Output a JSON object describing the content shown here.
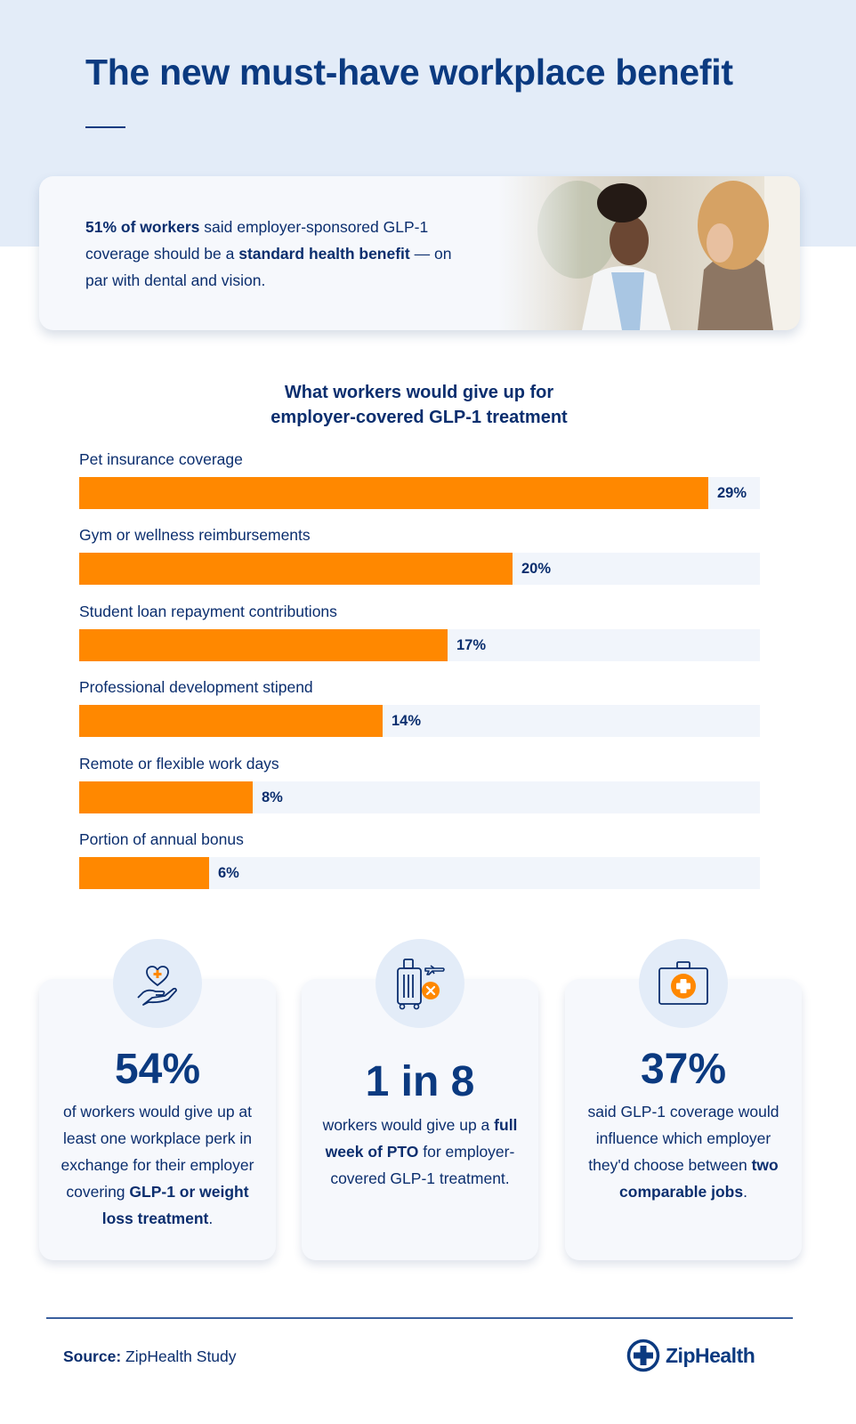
{
  "header": {
    "title": "The new must-have workplace benefit"
  },
  "hero": {
    "stat_bold": "51% of workers",
    "text_1": " said employer-sponsored GLP-1 coverage should be a ",
    "emphasis": "standard health benefit",
    "text_2": " — on par with dental and vision.",
    "photo_alt": "doctor-consulting-patient-photo"
  },
  "chart_data": {
    "type": "bar",
    "orientation": "horizontal",
    "title": "What workers would give up for employer-covered GLP-1 treatment",
    "title_line_1": "What workers would give up for",
    "title_line_2": "employer-covered GLP-1 treatment",
    "categories": [
      "Pet insurance coverage",
      "Gym or wellness reimbursements",
      "Student loan repayment contributions",
      "Professional development stipend",
      "Remote or flexible work days",
      "Portion of annual bonus"
    ],
    "values": [
      29,
      20,
      17,
      14,
      8,
      6
    ],
    "value_labels": [
      "29%",
      "20%",
      "17%",
      "14%",
      "8%",
      "6%"
    ],
    "unit": "%",
    "xlim": [
      0,
      31.4
    ],
    "grid": false,
    "legend": "none",
    "bar_color": "#ff8800",
    "track_color": "#f1f5fb"
  },
  "stats": [
    {
      "icon": "heart-in-hand-icon",
      "number": "54%",
      "desc_1": "of workers would give up at least one workplace perk in exchange for their employer covering ",
      "desc_bold": "GLP-1 or weight loss treatment",
      "desc_2": "."
    },
    {
      "icon": "luggage-cancel-icon",
      "number": "1 in 8",
      "desc_1": "workers would give up a ",
      "desc_bold": "full week of PTO",
      "desc_2": " for employer-covered GLP-1 treatment."
    },
    {
      "icon": "first-aid-kit-icon",
      "number": "37%",
      "desc_1": "said GLP-1 coverage would influence which employer they'd choose between ",
      "desc_bold": "two comparable jobs",
      "desc_2": "."
    }
  ],
  "footer": {
    "source_label": "Source:",
    "source_value": " ZipHealth Study",
    "brand_name": "ZipHealth"
  },
  "colors": {
    "navy": "#0b3a80",
    "orange": "#ff8800",
    "light_blue": "#e3ecf8"
  }
}
